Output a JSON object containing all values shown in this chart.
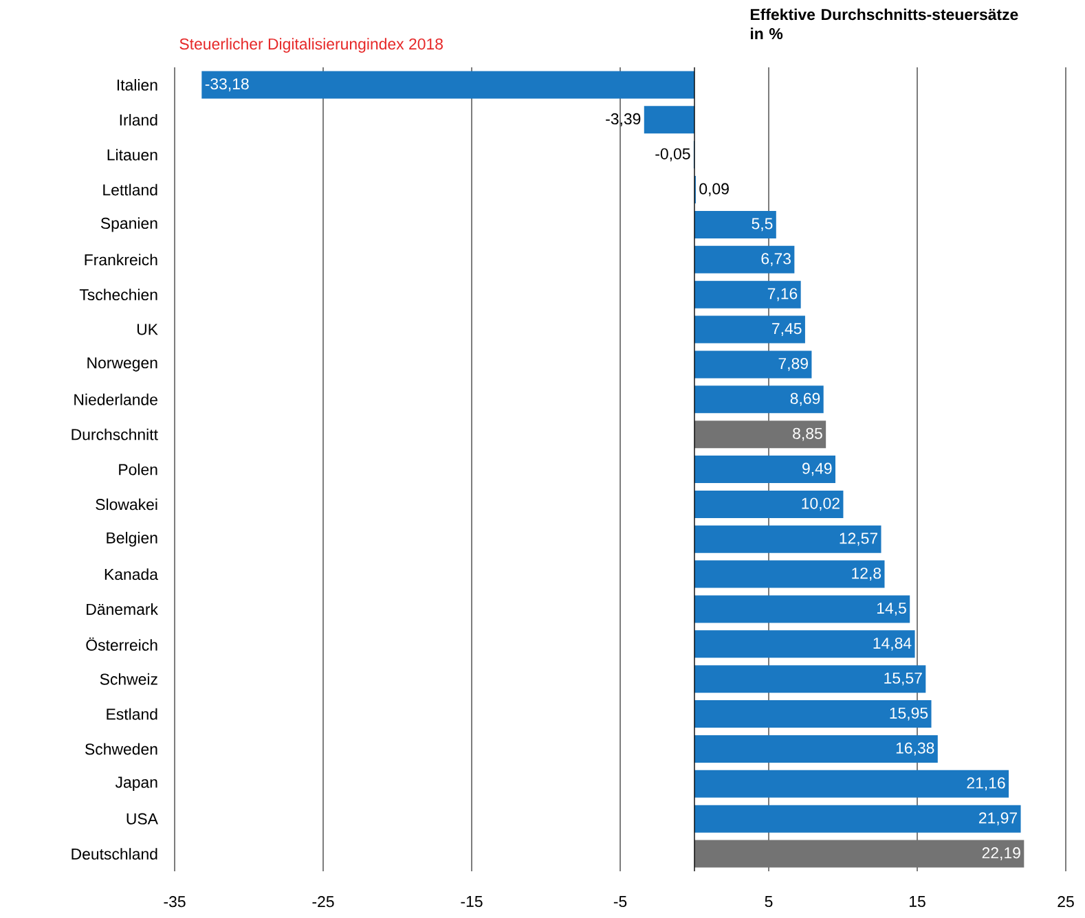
{
  "chart_data": {
    "type": "bar",
    "orientation": "horizontal",
    "title": "Steuerlicher Digitalisierungindex 2018",
    "annotations": [
      "Effektive Durchschnitts-steuersätze in %"
    ],
    "categories": [
      "Italien",
      "Irland",
      "Litauen",
      "Lettland",
      "Spanien",
      "Frankreich",
      "Tschechien",
      "UK",
      "Norwegen",
      "Niederlande",
      "Durchschnitt",
      "Polen",
      "Slowakei",
      "Belgien",
      "Kanada",
      "Dänemark",
      "Österreich",
      "Schweiz",
      "Estland",
      "Schweden",
      "Japan",
      "USA",
      "Deutschland"
    ],
    "values": [
      -33.18,
      -3.39,
      -0.05,
      0.09,
      5.5,
      6.73,
      7.16,
      7.45,
      7.89,
      8.69,
      8.85,
      9.49,
      10.02,
      12.57,
      12.8,
      14.5,
      14.84,
      15.57,
      15.95,
      16.38,
      21.16,
      21.97,
      22.19
    ],
    "value_labels": [
      "-33,18",
      "-3,39",
      "-0,05",
      "0,09",
      "5,5",
      "6,73",
      "7,16",
      "7,45",
      "7,89",
      "8,69",
      "8,85",
      "9,49",
      "10,02",
      "12,57",
      "12,8",
      "14,5",
      "14,84",
      "15,57",
      "15,95",
      "16,38",
      "21,16",
      "21,97",
      "22,19"
    ],
    "colors": [
      "#1a78c2",
      "#1a78c2",
      "#1a78c2",
      "#1a78c2",
      "#1a78c2",
      "#1a78c2",
      "#1a78c2",
      "#1a78c2",
      "#1a78c2",
      "#1a78c2",
      "#737373",
      "#1a78c2",
      "#1a78c2",
      "#1a78c2",
      "#1a78c2",
      "#1a78c2",
      "#1a78c2",
      "#1a78c2",
      "#1a78c2",
      "#1a78c2",
      "#1a78c2",
      "#1a78c2",
      "#737373"
    ],
    "xlim": [
      -35,
      25
    ],
    "xticks": [
      -35,
      -25,
      -15,
      -5,
      5,
      15,
      25
    ],
    "grid": "x"
  }
}
